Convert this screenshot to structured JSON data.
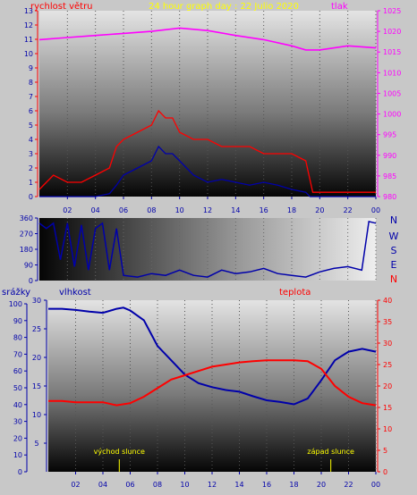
{
  "chart_data": [
    {
      "type": "line",
      "title": "24 hour graph day : 22 Julio 2020",
      "left_axis_title": "rychlost větru",
      "right_axis_title": "tlak",
      "x_ticks": [
        "02",
        "04",
        "06",
        "08",
        "10",
        "12",
        "14",
        "16",
        "18",
        "20",
        "22",
        "00"
      ],
      "y_left_ticks": [
        "0",
        "1",
        "2",
        "3",
        "4",
        "5",
        "6",
        "7",
        "8",
        "9",
        "10",
        "11",
        "12",
        "13"
      ],
      "y_right_ticks": [
        "980",
        "985",
        "990",
        "995",
        "1000",
        "1005",
        "1010",
        "1015",
        "1020",
        "1025"
      ],
      "ylim_left": [
        0,
        13
      ],
      "ylim_right": [
        980,
        1025
      ],
      "xlim": [
        0,
        24
      ],
      "colors": {
        "gust": "#ff0000",
        "wind": "#0000aa",
        "pressure": "#ff00ff",
        "title": "#ffff00",
        "left_axis": "#ff0000",
        "right_axis": "#ff00ff"
      },
      "series": [
        {
          "key": "pressure",
          "axis": "right",
          "x": [
            0,
            2,
            4,
            6,
            8,
            10,
            12,
            14,
            16,
            18,
            19,
            20,
            22,
            24
          ],
          "y": [
            1018,
            1018.5,
            1019,
            1019.5,
            1020,
            1020.8,
            1020.2,
            1019,
            1018,
            1016.5,
            1015.5,
            1015.5,
            1016.5,
            1016
          ]
        },
        {
          "key": "gust",
          "axis": "left",
          "x": [
            0,
            1,
            2,
            3,
            4,
            5,
            5.5,
            6,
            7,
            8,
            8.5,
            9,
            9.5,
            10,
            11,
            12,
            13,
            14,
            15,
            16,
            17,
            18,
            19,
            19.5,
            20,
            22,
            24
          ],
          "y": [
            0.5,
            1.5,
            1,
            1,
            1.5,
            2,
            3.5,
            4,
            4.5,
            5,
            6,
            5.5,
            5.5,
            4.5,
            4,
            4,
            3.5,
            3.5,
            3.5,
            3,
            3,
            3,
            2.5,
            0.3,
            0.3,
            0.3,
            0.3
          ]
        },
        {
          "key": "wind",
          "axis": "left",
          "x": [
            0,
            4,
            5,
            5.5,
            6,
            7,
            8,
            8.5,
            9,
            9.5,
            10,
            11,
            12,
            13,
            14,
            15,
            16,
            17,
            18,
            19,
            19.3,
            20,
            22,
            24
          ],
          "y": [
            0,
            0,
            0.2,
            0.8,
            1.5,
            2,
            2.5,
            3.5,
            3,
            3,
            2.5,
            1.5,
            1,
            1.2,
            1,
            0.8,
            1,
            0.8,
            0.5,
            0.3,
            0,
            0,
            0,
            0
          ]
        }
      ]
    },
    {
      "type": "line",
      "title": "",
      "right_labels": [
        "N",
        "W",
        "S",
        "E",
        "N"
      ],
      "y_left_ticks": [
        "0",
        "90",
        "180",
        "270",
        "360"
      ],
      "ylim": [
        0,
        360
      ],
      "xlim": [
        0,
        24
      ],
      "colors": {
        "direction": "#0000aa"
      },
      "series": [
        {
          "key": "direction",
          "x": [
            0,
            0.5,
            1,
            1.5,
            2,
            2.5,
            3,
            3.5,
            4,
            4.5,
            5,
            5.5,
            6,
            7,
            8,
            9,
            10,
            11,
            12,
            13,
            14,
            15,
            16,
            17,
            18,
            19,
            20,
            21,
            22,
            23,
            23.5,
            24
          ],
          "y": [
            330,
            300,
            330,
            120,
            330,
            80,
            320,
            60,
            300,
            330,
            60,
            300,
            30,
            20,
            40,
            30,
            60,
            30,
            20,
            60,
            40,
            50,
            70,
            40,
            30,
            20,
            50,
            70,
            80,
            60,
            340,
            330
          ]
        }
      ]
    },
    {
      "type": "line",
      "title": "",
      "labels": {
        "rain": "srážky",
        "humidity": "vlhkost",
        "temperature": "teplota",
        "sunrise": "východ slunce",
        "sunset": "západ slunce"
      },
      "x_ticks": [
        "02",
        "04",
        "06",
        "08",
        "10",
        "12",
        "14",
        "16",
        "18",
        "20",
        "22",
        "00"
      ],
      "y_rain_ticks": [
        "0",
        "10",
        "20",
        "30",
        "40",
        "50",
        "60",
        "70",
        "80",
        "90",
        "100"
      ],
      "y_humidity_ticks": [
        "5",
        "10",
        "15",
        "20",
        "25",
        "30"
      ],
      "y_temp_ticks": [
        "0",
        "5",
        "10",
        "15",
        "20",
        "25",
        "30",
        "35",
        "40"
      ],
      "ylim_rain": [
        0,
        100
      ],
      "ylim_humidity": [
        0,
        30
      ],
      "ylim_temperature": [
        0,
        40
      ],
      "xlim": [
        0,
        24
      ],
      "sunrise_hour": 5.2,
      "sunset_hour": 20.7,
      "colors": {
        "humidity": "#0000aa",
        "temperature": "#ff0000",
        "rain_axis": "#0000aa",
        "humidity_axis": "#0000aa",
        "temp_axis": "#ff0000",
        "sun_label": "#ffff00"
      },
      "series": [
        {
          "key": "humidity",
          "axis": "humidity",
          "x": [
            0,
            1,
            2,
            3,
            4,
            5,
            5.5,
            6,
            7,
            8,
            9,
            10,
            11,
            12,
            13,
            14,
            15,
            16,
            17,
            18,
            19,
            20,
            21,
            22,
            23,
            24
          ],
          "y": [
            28.5,
            28.5,
            28.3,
            28,
            27.8,
            28.5,
            28.7,
            28.2,
            26.5,
            22,
            19.5,
            17,
            15.5,
            14.8,
            14.3,
            14,
            13.2,
            12.5,
            12.2,
            11.8,
            12.8,
            16,
            19.5,
            21,
            21.5,
            21
          ]
        },
        {
          "key": "temperature",
          "axis": "temperature",
          "x": [
            0,
            1,
            2,
            3,
            4,
            5,
            6,
            7,
            8,
            9,
            10,
            11,
            12,
            13,
            14,
            15,
            16,
            17,
            18,
            19,
            20,
            21,
            22,
            23,
            24
          ],
          "y": [
            16.5,
            16.5,
            16.2,
            16.2,
            16.2,
            15.5,
            16,
            17.5,
            19.5,
            21.5,
            22.5,
            23.5,
            24.5,
            25,
            25.5,
            25.8,
            26,
            26,
            26,
            25.8,
            24,
            20,
            17.5,
            16,
            15.5
          ]
        }
      ]
    }
  ]
}
